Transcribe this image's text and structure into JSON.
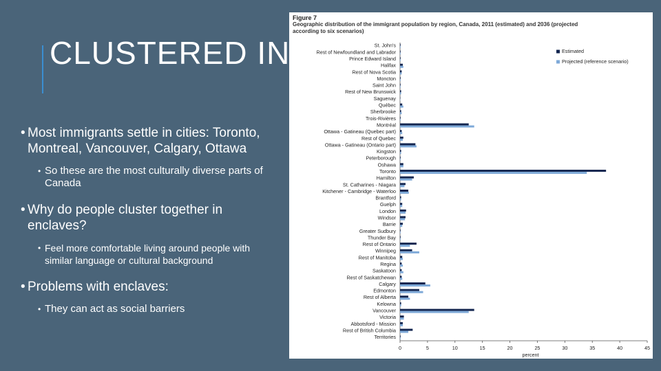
{
  "slide": {
    "title": "CLUSTERED IN",
    "bullets": [
      {
        "text": "Most immigrants settle in cities: Toronto, Montreal, Vancouver, Calgary, Ottawa",
        "sub": "So these are the most culturally diverse parts of Canada"
      },
      {
        "text": "Why do people cluster together in enclaves?",
        "sub": "Feel more comfortable living around people with similar language or cultural background"
      },
      {
        "text": "Problems with enclaves:",
        "sub": "They can act as social barriers"
      }
    ]
  },
  "chart_data": {
    "type": "hbar",
    "title": "Figure 7",
    "subtitle": "Geographic distribution of the immigrant population by region, Canada, 2011 (estimated) and 2036 (projected according to six scenarios)",
    "x_label": "percent",
    "categories": [
      "St. John's",
      "Rest of Newfoundland and Labrador",
      "Prince Edward Island",
      "Halifax",
      "Rest of Nova Scotia",
      "Moncton",
      "Saint John",
      "Rest of New Brunswick",
      "Saguenay",
      "Québec",
      "Sherbrooke",
      "Trois-Rivières",
      "Montréal",
      "Ottawa - Gatineau (Quebec part)",
      "Rest of Quebec",
      "Ottawa - Gatineau (Ontario part)",
      "Kingston",
      "Peterborough",
      "Oshawa",
      "Toronto",
      "Hamilton",
      "St. Catharines - Niagara",
      "Kitchener - Cambridge - Waterloo",
      "Brantford",
      "Guelph",
      "London",
      "Windsor",
      "Barrie",
      "Greater Sudbury",
      "Thunder Bay",
      "Rest of Ontario",
      "Winnipeg",
      "Rest of Manitoba",
      "Regina",
      "Saskatoon",
      "Rest of Saskatchewan",
      "Calgary",
      "Edmonton",
      "Rest of Alberta",
      "Kelowna",
      "Vancouver",
      "Victoria",
      "Abbotsford - Mission",
      "Rest of British Columbia",
      "Territories"
    ],
    "series": [
      {
        "name": "Estimated",
        "color": "#13254f",
        "values": [
          0.1,
          0.1,
          0.1,
          0.5,
          0.3,
          0.1,
          0.1,
          0.2,
          0.05,
          0.4,
          0.2,
          0.1,
          12.5,
          0.3,
          0.6,
          2.8,
          0.2,
          0.1,
          0.6,
          37.5,
          2.5,
          1.0,
          1.5,
          0.2,
          0.4,
          1.1,
          1.0,
          0.5,
          0.1,
          0.1,
          3.0,
          2.2,
          0.4,
          0.3,
          0.3,
          0.3,
          4.6,
          3.5,
          1.5,
          0.2,
          13.5,
          0.7,
          0.5,
          2.3,
          0.1
        ]
      },
      {
        "name": "Projected (reference scenario)",
        "color": "#7ea9d8",
        "values": [
          0.1,
          0.1,
          0.1,
          0.6,
          0.3,
          0.1,
          0.1,
          0.2,
          0.05,
          0.6,
          0.3,
          0.1,
          13.5,
          0.4,
          0.5,
          3.0,
          0.2,
          0.1,
          0.6,
          34,
          2.2,
          0.8,
          1.6,
          0.2,
          0.4,
          1.0,
          0.9,
          0.4,
          0.1,
          0.1,
          1.8,
          3.5,
          0.5,
          0.5,
          0.6,
          0.4,
          5.5,
          4.2,
          1.8,
          0.2,
          12.5,
          0.7,
          0.5,
          1.5,
          0.1
        ]
      }
    ],
    "xlim": [
      0,
      45
    ],
    "xticks": [
      0,
      5,
      10,
      15,
      20,
      25,
      30,
      35,
      40,
      45
    ],
    "legend": "top-right"
  }
}
